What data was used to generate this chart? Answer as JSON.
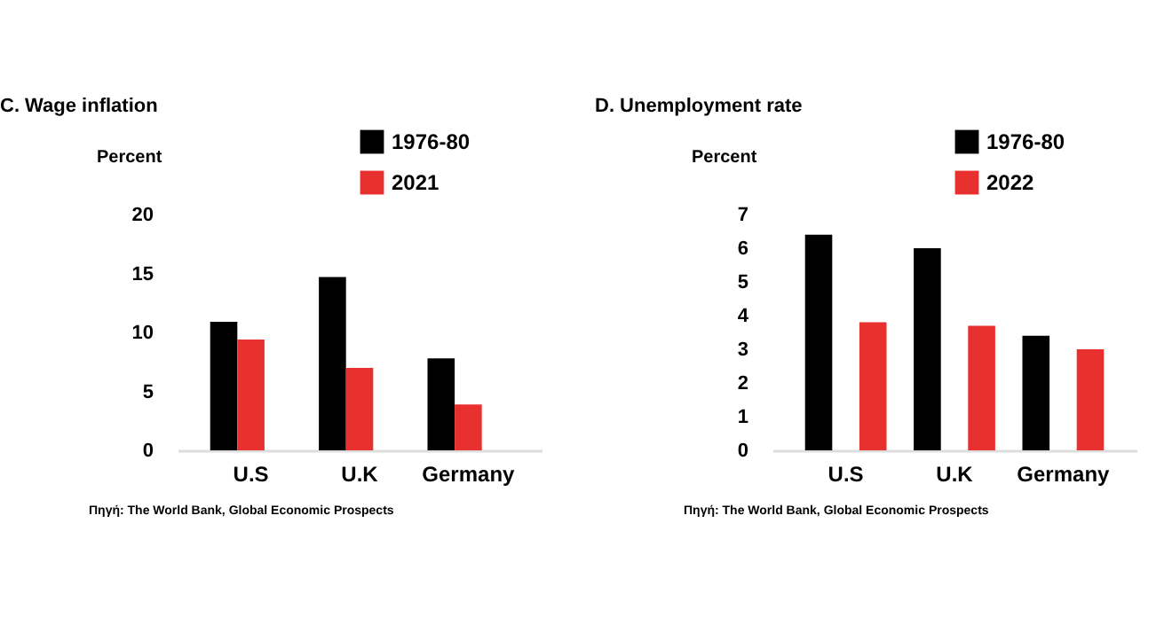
{
  "chart_data": [
    {
      "type": "bar",
      "title": "C. Wage inflation",
      "ylabel": "Percent",
      "categories": [
        "U.S",
        "U.K",
        "Germany"
      ],
      "series": [
        {
          "name": "1976-80",
          "color": "#000000",
          "values": [
            10.9,
            14.7,
            7.8
          ]
        },
        {
          "name": "2021",
          "color": "#e8312f",
          "values": [
            9.4,
            7.0,
            3.9
          ]
        }
      ],
      "ylim": [
        0,
        20
      ],
      "yticks": [
        0,
        5,
        10,
        15,
        20
      ],
      "grid": false,
      "legend": "top right",
      "annotations": [
        "Πηγή: The World Bank, Global Economic Prospects"
      ]
    },
    {
      "type": "bar",
      "title": "D. Unemployment rate",
      "ylabel": "Percent",
      "categories": [
        "U.S",
        "U.K",
        "Germany"
      ],
      "series": [
        {
          "name": "1976-80",
          "color": "#000000",
          "values": [
            6.4,
            6.0,
            3.4
          ]
        },
        {
          "name": "2022",
          "color": "#e8312f",
          "values": [
            3.8,
            3.7,
            3.0
          ]
        }
      ],
      "ylim": [
        0,
        7
      ],
      "yticks": [
        0,
        1,
        2,
        3,
        4,
        5,
        6,
        7
      ],
      "grid": false,
      "legend": "top right",
      "annotations": [
        "Πηγή: The World Bank, Global Economic Prospects"
      ]
    }
  ]
}
